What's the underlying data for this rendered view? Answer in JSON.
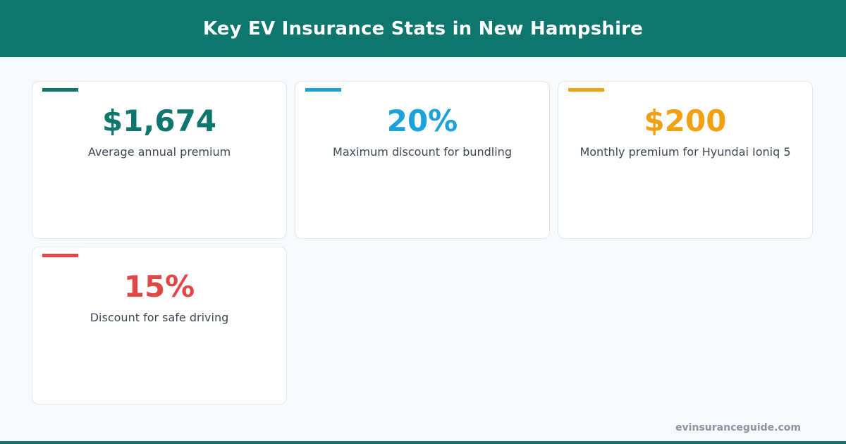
{
  "header": {
    "title": "Key EV Insurance Stats in New Hampshire"
  },
  "colors": {
    "header_bg": "#0f766e",
    "teal": "#0f766e",
    "blue": "#19a2dc",
    "amber": "#f0a010",
    "red": "#e04848"
  },
  "stats": [
    {
      "value": "$1,674",
      "label": "Average annual premium",
      "accent": "#0f766e"
    },
    {
      "value": "20%",
      "label": "Maximum discount for bundling",
      "accent": "#19a2dc"
    },
    {
      "value": "$200",
      "label": "Monthly premium for Hyundai Ioniq 5",
      "accent": "#f0a010"
    },
    {
      "value": "15%",
      "label": "Discount for safe driving",
      "accent": "#e04848"
    }
  ],
  "footer": {
    "site": "evinsuranceguide.com"
  }
}
